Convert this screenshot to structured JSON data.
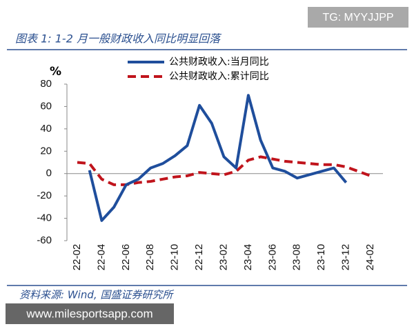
{
  "chart_data": {
    "type": "line",
    "title": "图表 1: 1-2 月一般财政收入同比明显回落",
    "ylabel": "%",
    "source": "资料来源: Wind, 国盛证券研究所",
    "categories": [
      "22-02",
      null,
      "22-04",
      null,
      "22-06",
      null,
      "22-08",
      null,
      "22-10",
      null,
      "22-12",
      null,
      "23-02",
      null,
      "23-04",
      null,
      "23-06",
      null,
      "23-08",
      null,
      "23-10",
      null,
      "23-12",
      null,
      "24-02"
    ],
    "series": [
      {
        "name": "公共财政收入:当月同比",
        "color": "#1f4e9c",
        "dash": false,
        "values": [
          null,
          3,
          -42,
          -30,
          -10,
          -5,
          5,
          9,
          16,
          25,
          61,
          45,
          15,
          5,
          70,
          30,
          5,
          2,
          -4,
          -1,
          2,
          5,
          -8,
          null,
          null
        ]
      },
      {
        "name": "公共财政收入:累计同比",
        "color": "#c0141c",
        "dash": true,
        "values": [
          10,
          9,
          -5,
          -10,
          -10,
          -8,
          -7,
          -5,
          -3,
          -2,
          1,
          0,
          -1,
          2,
          12,
          15,
          13,
          11,
          10,
          9,
          8,
          8,
          6,
          2,
          -2
        ]
      }
    ],
    "ylim": [
      -60,
      80
    ],
    "yticks": [
      80,
      60,
      40,
      20,
      0,
      -20,
      -40,
      -60
    ],
    "legend": "top"
  },
  "overlays": [
    "TG: MYYJJPP",
    "www.milesportsapp.com"
  ]
}
